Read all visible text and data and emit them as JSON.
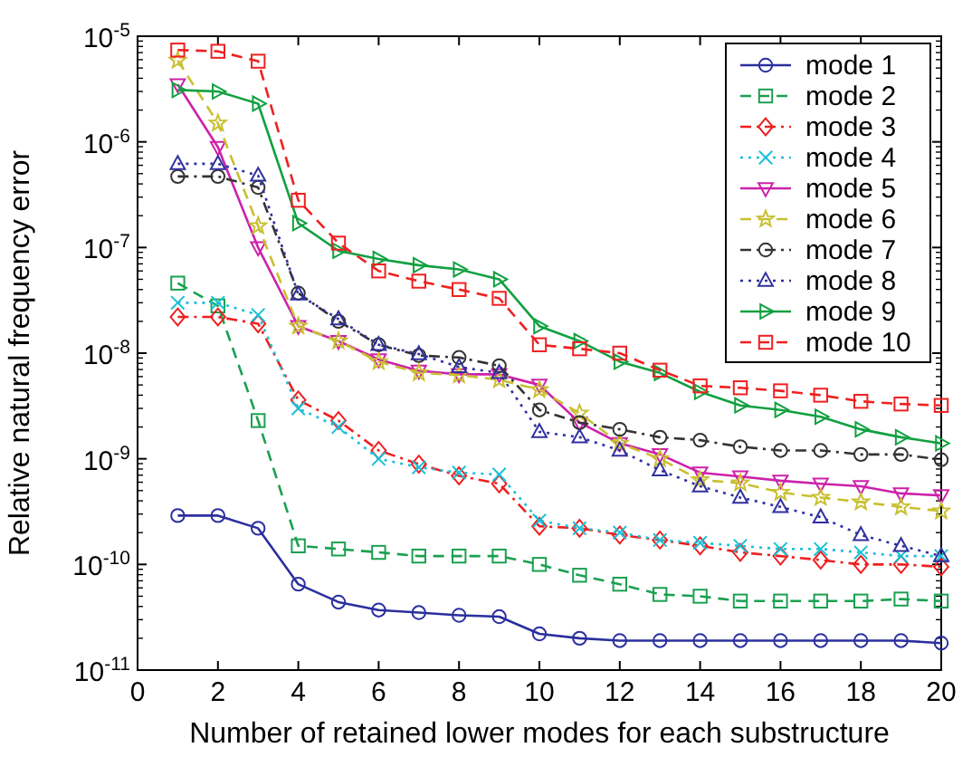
{
  "chart_data": {
    "type": "line",
    "xlabel": "Number of retained lower modes for each substructure",
    "ylabel": "Relative natural frequency error",
    "log": "y",
    "xlim": [
      0,
      20
    ],
    "xticks": [
      0,
      2,
      4,
      6,
      8,
      10,
      12,
      14,
      16,
      18,
      20
    ],
    "ylim": [
      1e-11,
      1e-05
    ],
    "yticks": [
      {
        "value": 1e-11,
        "label": "10$^{-11}$"
      },
      {
        "value": 1e-10,
        "label": "10$^{-10}$"
      },
      {
        "value": 1e-09,
        "label": "10$^{-9}$"
      },
      {
        "value": 1e-08,
        "label": "10$^{-8}$"
      },
      {
        "value": 1e-07,
        "label": "10$^{-7}$"
      },
      {
        "value": 1e-06,
        "label": "10$^{-6}$"
      },
      {
        "value": 1e-05,
        "label": "10$^{-5}$"
      }
    ],
    "x": [
      1,
      2,
      3,
      4,
      5,
      6,
      7,
      8,
      9,
      10,
      11,
      12,
      13,
      14,
      15,
      16,
      17,
      18,
      19,
      20
    ],
    "grid": false,
    "legend": "top right",
    "series": [
      {
        "name": "mode 1",
        "color": "#2b2f9e",
        "marker": "circle",
        "line_style": "solid",
        "values": [
          2.9e-10,
          2.9e-10,
          2.2e-10,
          6.5e-11,
          4.4e-11,
          3.7e-11,
          3.5e-11,
          3.3e-11,
          3.2e-11,
          2.2e-11,
          2e-11,
          1.9e-11,
          1.9e-11,
          1.9e-11,
          1.9e-11,
          1.9e-11,
          1.9e-11,
          1.9e-11,
          1.9e-11,
          1.8e-11
        ]
      },
      {
        "name": "mode 2",
        "color": "#1aa050",
        "marker": "square",
        "line_style": "dashed",
        "values": [
          4.6e-08,
          2.8e-08,
          2.3e-09,
          1.5e-10,
          1.4e-10,
          1.3e-10,
          1.2e-10,
          1.2e-10,
          1.2e-10,
          1e-10,
          7.9e-11,
          6.5e-11,
          5.2e-11,
          5e-11,
          4.5e-11,
          4.5e-11,
          4.5e-11,
          4.5e-11,
          4.7e-11,
          4.5e-11
        ]
      },
      {
        "name": "mode 3",
        "color": "#ee2020",
        "marker": "diamond",
        "line_style": "dashdot",
        "values": [
          2.2e-08,
          2.2e-08,
          1.9e-08,
          3.6e-09,
          2.3e-09,
          1.2e-09,
          8.9e-10,
          6.9e-10,
          5.8e-10,
          2.3e-10,
          2.2e-10,
          1.9e-10,
          1.7e-10,
          1.5e-10,
          1.3e-10,
          1.2e-10,
          1.1e-10,
          1e-10,
          1e-10,
          9.5e-11
        ]
      },
      {
        "name": "mode 4",
        "color": "#19c0d8",
        "marker": "cross",
        "line_style": "dotted",
        "values": [
          3e-08,
          3e-08,
          2.3e-08,
          3e-09,
          2e-09,
          1e-09,
          8.3e-10,
          7.4e-10,
          7.1e-10,
          2.6e-10,
          2.2e-10,
          2e-10,
          1.7e-10,
          1.6e-10,
          1.5e-10,
          1.4e-10,
          1.4e-10,
          1.3e-10,
          1.2e-10,
          1.2e-10
        ]
      },
      {
        "name": "mode 5",
        "color": "#cc22aa",
        "marker": "triangle-down",
        "line_style": "solid",
        "values": [
          3.5e-06,
          8.9e-07,
          1e-07,
          1.8e-08,
          1.3e-08,
          8.7e-09,
          6.8e-09,
          6.3e-09,
          6.3e-09,
          5e-09,
          2.2e-09,
          1.4e-09,
          1.1e-09,
          7.4e-10,
          6.8e-10,
          6.2e-10,
          5.8e-10,
          5.5e-10,
          4.7e-10,
          4.5e-10
        ]
      },
      {
        "name": "mode 6",
        "color": "#c8c030",
        "marker": "star",
        "line_style": "dashed",
        "values": [
          5.9e-06,
          1.5e-06,
          1.6e-07,
          1.8e-08,
          1.3e-08,
          8.3e-09,
          6.5e-09,
          6.2e-09,
          5.6e-09,
          4.5e-09,
          2.7e-09,
          1.4e-09,
          1e-09,
          6.3e-10,
          5.9e-10,
          4.8e-10,
          4.3e-10,
          3.9e-10,
          3.5e-10,
          3.2e-10
        ]
      },
      {
        "name": "mode 7",
        "color": "#333333",
        "marker": "circle",
        "line_style": "dashdot",
        "values": [
          4.7e-07,
          4.7e-07,
          3.7e-07,
          3.7e-08,
          2e-08,
          1.2e-08,
          9.5e-09,
          9.1e-09,
          7.6e-09,
          2.9e-09,
          2.2e-09,
          1.9e-09,
          1.6e-09,
          1.5e-09,
          1.3e-09,
          1.2e-09,
          1.2e-09,
          1.1e-09,
          1.1e-09,
          9.8e-10
        ]
      },
      {
        "name": "mode 8",
        "color": "#3030a0",
        "marker": "triangle",
        "line_style": "dotted",
        "values": [
          6.2e-07,
          6.2e-07,
          4.8e-07,
          3.6e-08,
          2.1e-08,
          1.2e-08,
          9.8e-09,
          7.4e-09,
          6.5e-09,
          1.8e-09,
          1.6e-09,
          1.2e-09,
          7.8e-10,
          5.5e-10,
          4.3e-10,
          3.5e-10,
          2.8e-10,
          1.9e-10,
          1.5e-10,
          1.2e-10
        ]
      },
      {
        "name": "mode 9",
        "color": "#10a040",
        "marker": "triangle-right",
        "line_style": "solid",
        "values": [
          3.1e-06,
          3e-06,
          2.3e-06,
          1.7e-07,
          9.3e-08,
          7.8e-08,
          6.8e-08,
          6.2e-08,
          5e-08,
          1.8e-08,
          1.3e-08,
          8.3e-09,
          6.5e-09,
          4.3e-09,
          3.2e-09,
          2.9e-09,
          2.5e-09,
          1.9e-09,
          1.6e-09,
          1.4e-09
        ]
      },
      {
        "name": "mode 10",
        "color": "#ee2020",
        "marker": "square",
        "line_style": "dashed",
        "values": [
          7.4e-06,
          7.2e-06,
          5.8e-06,
          2.8e-07,
          1.1e-07,
          6e-08,
          4.8e-08,
          4e-08,
          3.3e-08,
          1.2e-08,
          1.1e-08,
          1e-08,
          6.9e-09,
          4.9e-09,
          4.7e-09,
          4.4e-09,
          4e-09,
          3.5e-09,
          3.3e-09,
          3.2e-09
        ]
      }
    ]
  }
}
